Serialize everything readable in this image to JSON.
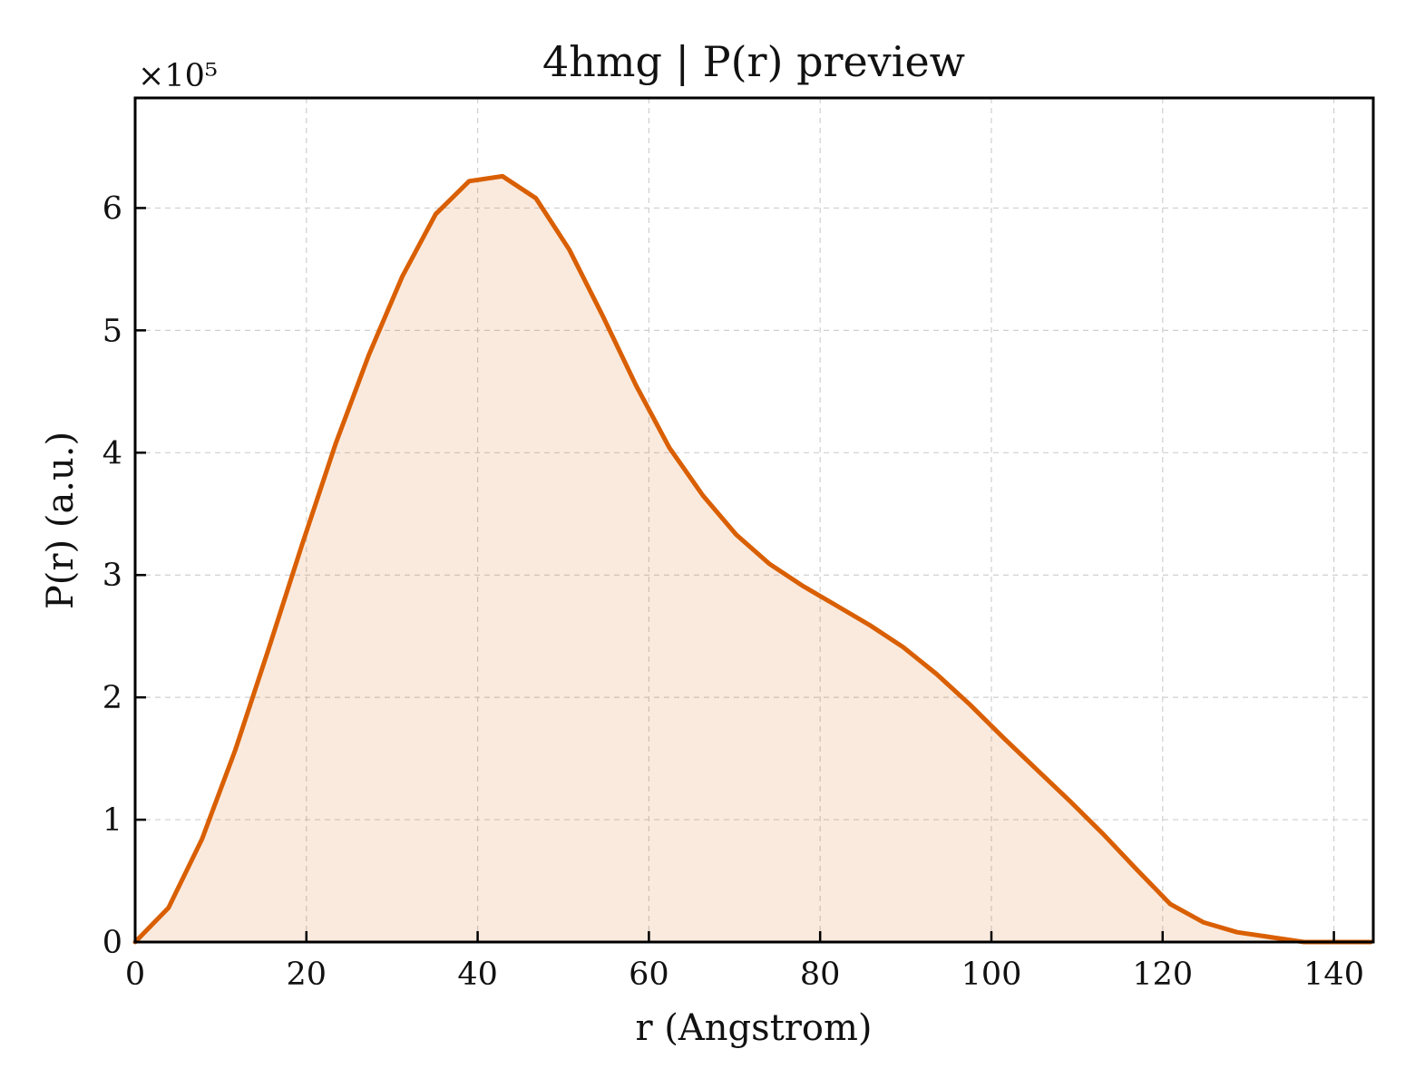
{
  "chart_data": {
    "type": "area",
    "title": "4hmg | P(r) preview",
    "xlabel": "r (Angstrom)",
    "ylabel": "P(r) (a.u.)",
    "y_multiplier_label": "×10⁵",
    "y_scale": 100000,
    "xlim": [
      0,
      144.6
    ],
    "ylim": [
      0,
      690000
    ],
    "x_ticks": [
      0,
      20,
      40,
      60,
      80,
      100,
      120,
      140
    ],
    "y_ticks": [
      0,
      100000,
      200000,
      300000,
      400000,
      500000,
      600000
    ],
    "y_tick_labels": [
      "0",
      "1",
      "2",
      "3",
      "4",
      "5",
      "6"
    ],
    "grid": true,
    "legend": "none",
    "colors": {
      "line": "#d95f02",
      "fill": "#d95f02"
    },
    "series": [
      {
        "x": [
          0,
          3.9,
          7.8,
          11.7,
          15.6,
          19.5,
          23.4,
          27.3,
          31.2,
          35.1,
          39.0,
          42.9,
          46.8,
          50.7,
          54.6,
          58.5,
          62.4,
          66.3,
          70.2,
          74.1,
          78.0,
          81.9,
          85.8,
          89.7,
          93.6,
          97.5,
          101.4,
          105.3,
          109.2,
          113.1,
          117.0,
          120.9,
          124.8,
          128.7,
          132.6,
          136.5,
          140.4,
          144.3
        ],
        "y": [
          0,
          28000,
          84000,
          157000,
          240000,
          325000,
          407000,
          480000,
          544000,
          595000,
          622000,
          626000,
          608000,
          566000,
          512000,
          455000,
          404000,
          365000,
          333000,
          309000,
          291000,
          275000,
          259000,
          241000,
          219000,
          194000,
          167000,
          141000,
          115000,
          88000,
          59000,
          31000,
          16000,
          8000,
          4000,
          0,
          0,
          0
        ]
      }
    ]
  }
}
